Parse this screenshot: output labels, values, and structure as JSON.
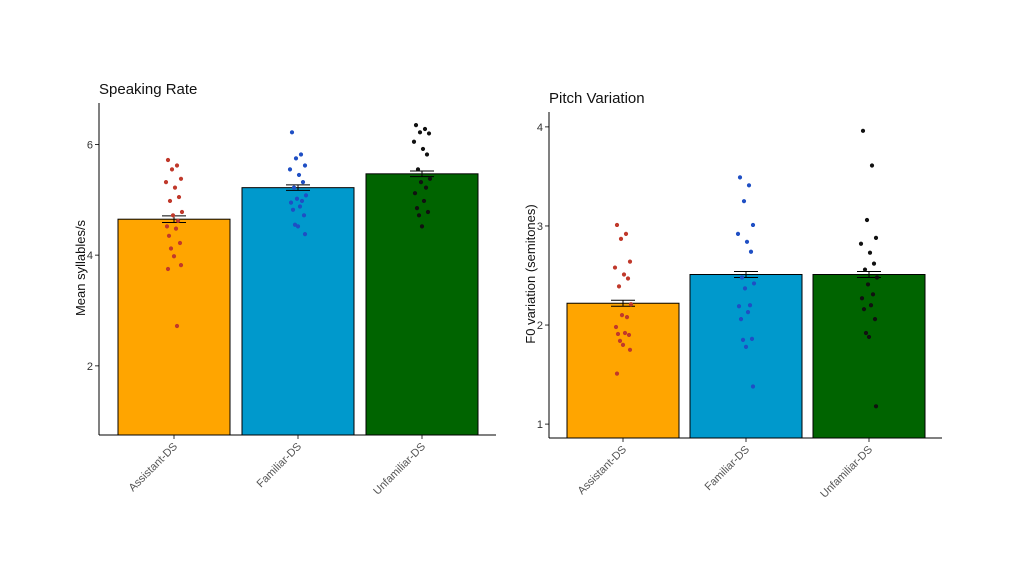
{
  "chart_data": [
    {
      "type": "bar",
      "title": "Speaking Rate",
      "xlabel": "",
      "ylabel": "Mean syllables/s",
      "categories": [
        "Assistant-DS",
        "Familiar-DS",
        "Unfamiliar-DS"
      ],
      "values": [
        4.65,
        5.22,
        5.47
      ],
      "error": [
        0.06,
        0.05,
        0.05
      ],
      "ylim": [
        0.75,
        6.75
      ],
      "yticks": [
        2,
        4,
        6
      ],
      "colors": [
        "#FFA500",
        "#0099CC",
        "#006400"
      ],
      "point_colors": [
        "#C0392B",
        "#1F4FC4",
        "#111111"
      ],
      "points": [
        [
          5.72,
          5.62,
          5.55,
          5.38,
          5.32,
          5.22,
          5.05,
          4.98,
          4.78,
          4.72,
          4.62,
          4.52,
          4.48,
          4.35,
          4.22,
          4.12,
          3.98,
          3.82,
          3.75,
          2.72
        ],
        [
          6.22,
          5.82,
          5.75,
          5.62,
          5.55,
          5.45,
          5.32,
          5.22,
          5.08,
          5.02,
          4.98,
          4.95,
          4.88,
          4.82,
          4.72,
          4.55,
          4.52,
          4.38
        ],
        [
          6.35,
          6.28,
          6.22,
          6.2,
          6.05,
          5.92,
          5.82,
          5.55,
          5.38,
          5.32,
          5.22,
          5.12,
          4.98,
          4.85,
          4.78,
          4.72,
          4.52
        ]
      ]
    },
    {
      "type": "bar",
      "title": "Pitch Variation",
      "xlabel": "",
      "ylabel": "F0 variation (semitones)",
      "categories": [
        "Assistant-DS",
        "Familiar-DS",
        "Unfamiliar-DS"
      ],
      "values": [
        2.22,
        2.51,
        2.51
      ],
      "error": [
        0.03,
        0.03,
        0.03
      ],
      "ylim": [
        0.86,
        4.15
      ],
      "yticks": [
        1,
        2,
        3,
        4
      ],
      "colors": [
        "#FFA500",
        "#0099CC",
        "#006400"
      ],
      "point_colors": [
        "#C0392B",
        "#1F4FC4",
        "#111111"
      ],
      "points": [
        [
          3.01,
          2.92,
          2.87,
          2.64,
          2.58,
          2.51,
          2.47,
          2.39,
          2.21,
          2.1,
          2.08,
          1.98,
          1.92,
          1.91,
          1.9,
          1.84,
          1.8,
          1.75,
          1.51
        ],
        [
          3.49,
          3.41,
          3.25,
          3.01,
          2.92,
          2.84,
          2.74,
          2.48,
          2.42,
          2.37,
          2.2,
          2.19,
          2.13,
          2.06,
          1.86,
          1.85,
          1.78,
          1.38
        ],
        [
          3.96,
          3.61,
          3.06,
          2.88,
          2.82,
          2.73,
          2.62,
          2.56,
          2.48,
          2.41,
          2.31,
          2.27,
          2.2,
          2.16,
          2.06,
          1.92,
          1.88,
          1.18
        ]
      ]
    }
  ]
}
